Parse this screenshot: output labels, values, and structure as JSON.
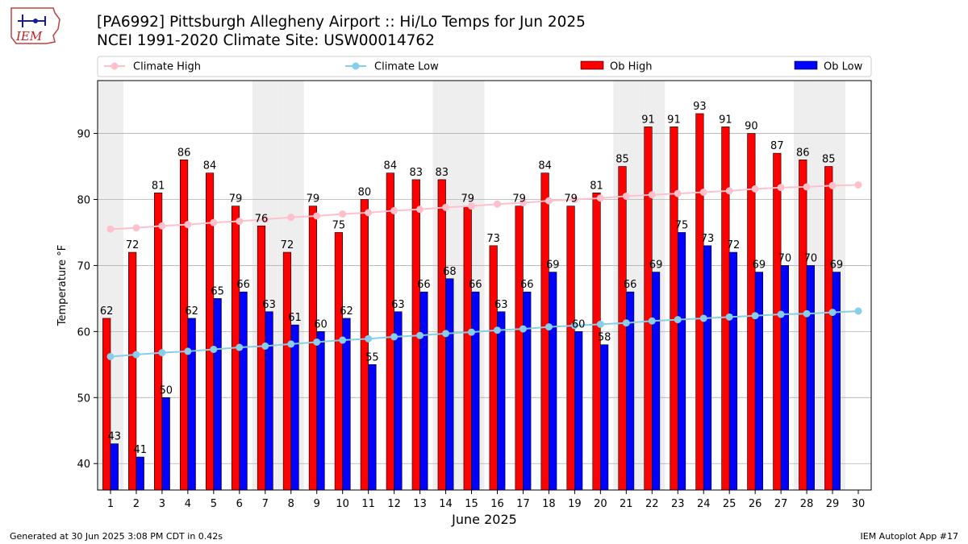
{
  "header": {
    "title_line1": "[PA6992] Pittsburgh Allegheny Airport :: Hi/Lo Temps for Jun 2025",
    "title_line2": "NCEI 1991-2020 Climate Site: USW00014762",
    "logo_text": "IEM"
  },
  "footer": {
    "generated": "Generated at 30 Jun 2025 3:08 PM CDT in 0.42s",
    "app": "IEM Autoplot App #17"
  },
  "colors": {
    "ob_high": "#ff0000",
    "ob_low": "#0000ff",
    "climate_high": "#ffc0cb",
    "climate_low": "#87ceeb",
    "weekend_shade": "#eeeeee",
    "grid": "#b0b0b0"
  },
  "chart_data": {
    "type": "bar",
    "xlabel": "June 2025",
    "ylabel": "Temperature °F",
    "ylim": [
      36,
      98
    ],
    "yticks": [
      40,
      50,
      60,
      70,
      80,
      90
    ],
    "xlim": [
      0.5,
      30.5
    ],
    "grid": "horizontal",
    "legend_position": "top",
    "categories": [
      1,
      2,
      3,
      4,
      5,
      6,
      7,
      8,
      9,
      10,
      11,
      12,
      13,
      14,
      15,
      16,
      17,
      18,
      19,
      20,
      21,
      22,
      23,
      24,
      25,
      26,
      27,
      28,
      29,
      30
    ],
    "shaded_days": [
      1,
      7,
      8,
      14,
      15,
      21,
      22,
      28,
      29
    ],
    "series": [
      {
        "name": "Ob High",
        "kind": "bar",
        "values": [
          62,
          72,
          81,
          86,
          84,
          79,
          76,
          72,
          79,
          75,
          80,
          84,
          83,
          83,
          79,
          73,
          79,
          84,
          79,
          81,
          85,
          91,
          91,
          93,
          91,
          90,
          87,
          86,
          85,
          null
        ]
      },
      {
        "name": "Ob Low",
        "kind": "bar",
        "values": [
          43,
          41,
          50,
          62,
          65,
          66,
          63,
          61,
          60,
          62,
          55,
          63,
          66,
          68,
          66,
          63,
          66,
          69,
          60,
          58,
          66,
          69,
          75,
          73,
          72,
          69,
          70,
          70,
          69,
          null
        ]
      },
      {
        "name": "Climate High",
        "kind": "line",
        "values": [
          75.5,
          75.7,
          76.0,
          76.2,
          76.5,
          76.7,
          77.0,
          77.3,
          77.5,
          77.8,
          78.0,
          78.3,
          78.5,
          78.8,
          79.0,
          79.3,
          79.5,
          79.8,
          80.0,
          80.2,
          80.5,
          80.7,
          80.9,
          81.1,
          81.3,
          81.6,
          81.8,
          81.9,
          82.1,
          82.2
        ]
      },
      {
        "name": "Climate Low",
        "kind": "line",
        "values": [
          56.2,
          56.5,
          56.8,
          57.0,
          57.3,
          57.6,
          57.8,
          58.1,
          58.4,
          58.7,
          58.9,
          59.2,
          59.4,
          59.7,
          59.9,
          60.2,
          60.4,
          60.7,
          60.9,
          61.1,
          61.3,
          61.6,
          61.8,
          62.0,
          62.2,
          62.4,
          62.6,
          62.7,
          62.9,
          63.1
        ]
      }
    ]
  }
}
